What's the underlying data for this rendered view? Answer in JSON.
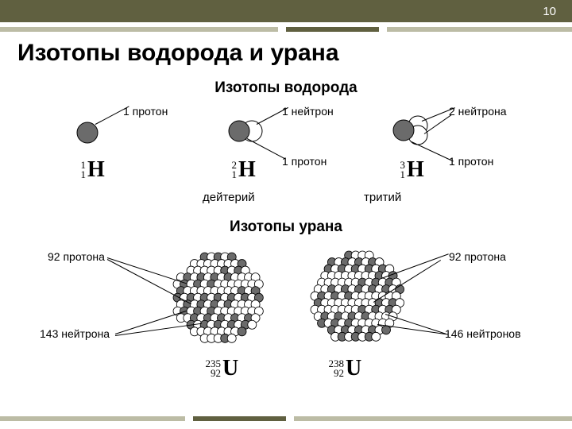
{
  "page_number": "10",
  "title": "Изотопы водорода и урана",
  "hydrogen_section": "Изотопы водорода",
  "uranium_section": "Изотопы урана",
  "labels": {
    "proton1": "1 протон",
    "neutron1": "1 нейтрон",
    "neutron2": "2 нейтрона",
    "deuterium": "дейтерий",
    "tritium": "тритий",
    "protons92": "92 протона",
    "neutrons143": "143 нейтрона",
    "neutrons146": "146 нейтронов"
  },
  "symbols": {
    "h1": {
      "mass": "1",
      "z": "1",
      "el": "H"
    },
    "h2": {
      "mass": "2",
      "z": "1",
      "el": "H"
    },
    "h3": {
      "mass": "3",
      "z": "1",
      "el": "H"
    },
    "u235": {
      "mass": "235",
      "z": "92",
      "el": "U"
    },
    "u238": {
      "mass": "238",
      "z": "92",
      "el": "U"
    }
  },
  "colors": {
    "header_bg": "#606040",
    "accent_light": "#bcbca5",
    "proton_fill": "#6b6b6b",
    "neutron_fill": "#ffffff",
    "stroke": "#000000"
  },
  "particles": {
    "proton_radius": 13,
    "neutron_radius": 13,
    "uranium_cluster_radius": 60,
    "uranium_ball_radius": 5.5
  }
}
